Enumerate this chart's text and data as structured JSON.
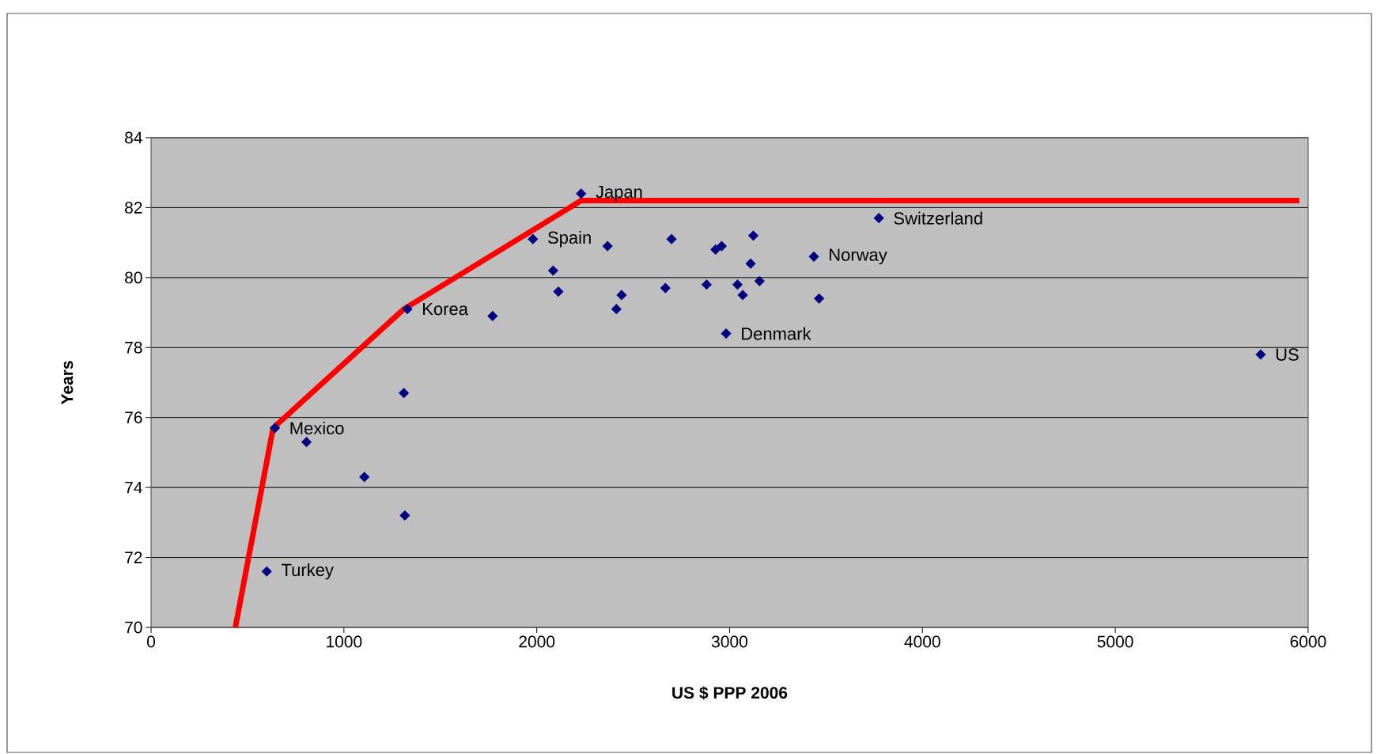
{
  "chart_data": {
    "type": "scatter",
    "xlabel": "US $ PPP 2006",
    "ylabel": "Years",
    "xlim": [
      0,
      6000
    ],
    "ylim": [
      70,
      84
    ],
    "xticks": [
      0,
      1000,
      2000,
      3000,
      4000,
      5000,
      6000
    ],
    "yticks": [
      70,
      72,
      74,
      76,
      78,
      80,
      82,
      84
    ],
    "grid": "y",
    "marker": "diamond",
    "series": [
      {
        "color": "#000080",
        "x": [
          600,
          642,
          806,
          1106,
          1311,
          1316,
          1329,
          1771,
          1980,
          2230,
          2085,
          2112,
          2367,
          2413,
          2440,
          2667,
          2699,
          2881,
          2927,
          2959,
          2982,
          3041,
          3068,
          3109,
          3123,
          3155,
          3437,
          3464,
          3774,
          5754
        ],
        "values": [
          71.6,
          75.7,
          75.3,
          74.3,
          76.7,
          73.2,
          79.1,
          78.9,
          81.1,
          82.4,
          80.2,
          79.6,
          80.9,
          79.1,
          79.5,
          79.7,
          81.1,
          79.8,
          80.8,
          80.9,
          78.4,
          79.8,
          79.5,
          80.4,
          81.2,
          79.9,
          80.6,
          79.4,
          81.7,
          77.8
        ]
      },
      {
        "type": "line",
        "color": "#ff0000",
        "marker": "none",
        "x": [
          437,
          633,
          1311,
          2230,
          5954
        ],
        "values": [
          70,
          75.7,
          79.1,
          82.2,
          82.2
        ]
      }
    ],
    "annotations": [
      {
        "text": "Turkey",
        "x": 600,
        "y": 71.6
      },
      {
        "text": "Mexico",
        "x": 642,
        "y": 75.7
      },
      {
        "text": "Korea",
        "x": 1329,
        "y": 79.1
      },
      {
        "text": "Spain",
        "x": 1980,
        "y": 81.1
      },
      {
        "text": "Japan",
        "x": 2230,
        "y": 82.4
      },
      {
        "text": "Denmark",
        "x": 2982,
        "y": 78.4
      },
      {
        "text": "Norway",
        "x": 3437,
        "y": 80.6
      },
      {
        "text": "Switzerland",
        "x": 3774,
        "y": 81.7
      },
      {
        "text": "US",
        "x": 5754,
        "y": 77.8
      }
    ]
  }
}
